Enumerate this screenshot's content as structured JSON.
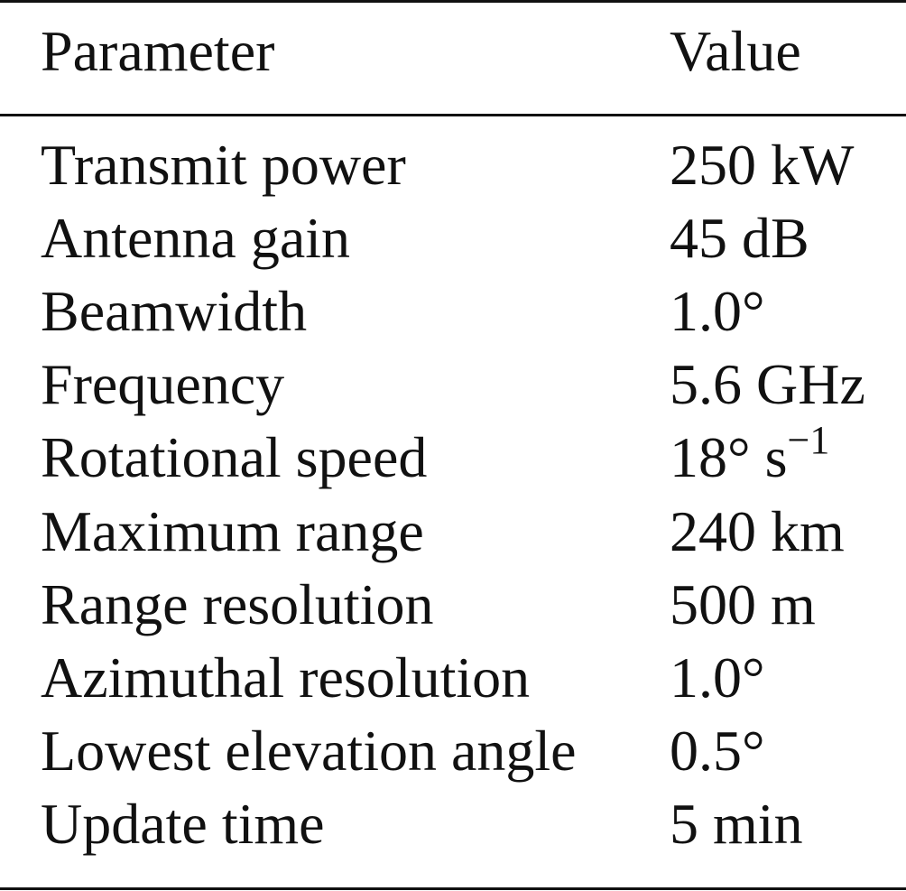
{
  "table": {
    "header": [
      "Parameter",
      "Value"
    ],
    "rows": [
      [
        "Transmit power",
        "250 kW"
      ],
      [
        "Antenna gain",
        "45 dB"
      ],
      [
        "Beamwidth",
        "1.0°"
      ],
      [
        "Frequency",
        "5.6 GHz"
      ],
      [
        "Rotational speed",
        {
          "base": "18° s",
          "sup": "−1"
        }
      ],
      [
        "Maximum range",
        "240 km"
      ],
      [
        "Range resolution",
        "500 m"
      ],
      [
        "Azimuthal resolution",
        "1.0°"
      ],
      [
        "Lowest elevation angle",
        "0.5°"
      ],
      [
        "Update time",
        "5 min"
      ]
    ]
  }
}
